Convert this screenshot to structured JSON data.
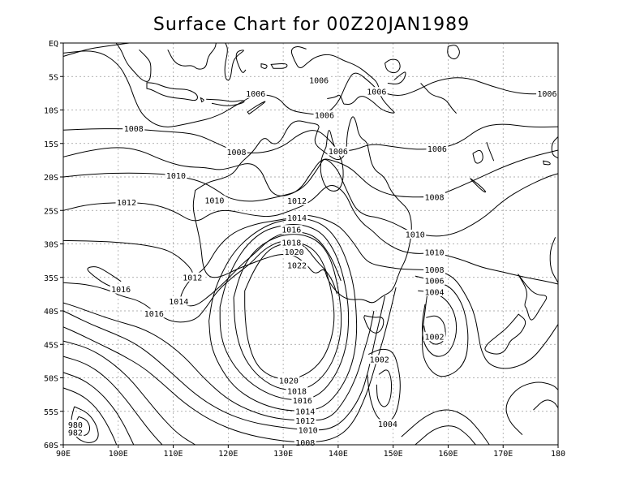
{
  "title": "Surface Chart for   00Z20JAN1989",
  "chart_data": {
    "type": "contour-map",
    "title": "Surface Chart for   00Z20JAN1989",
    "x_ticks": [
      "90E",
      "100E",
      "110E",
      "120E",
      "130E",
      "140E",
      "150E",
      "160E",
      "170E",
      "180"
    ],
    "y_ticks": [
      "EQ",
      "5S",
      "10S",
      "15S",
      "20S",
      "25S",
      "30S",
      "35S",
      "40S",
      "45S",
      "50S",
      "55S",
      "60S"
    ],
    "xlim": [
      90,
      180
    ],
    "ylim": [
      -60,
      0
    ],
    "grid": true,
    "units": "",
    "isobar_labels": [
      {
        "text": "1006",
        "lon": 102.8,
        "lat": -12.8
      },
      {
        "text": "1008",
        "lon": 102.8,
        "lat": -12.8
      },
      {
        "text": "1006",
        "lon": 125.0,
        "lat": -7.6
      },
      {
        "text": "1006",
        "lon": 136.5,
        "lat": -5.6
      },
      {
        "text": "1006",
        "lon": 137.5,
        "lat": -10.8
      },
      {
        "text": "1006",
        "lon": 147.0,
        "lat": -7.3
      },
      {
        "text": "1006",
        "lon": 178.0,
        "lat": -7.6
      },
      {
        "text": "1008",
        "lon": 121.5,
        "lat": -16.3
      },
      {
        "text": "1006",
        "lon": 140.0,
        "lat": -16.2
      },
      {
        "text": "1006",
        "lon": 158.0,
        "lat": -15.8
      },
      {
        "text": "1010",
        "lon": 110.5,
        "lat": -19.8
      },
      {
        "text": "1010",
        "lon": 117.5,
        "lat": -23.5
      },
      {
        "text": "1008",
        "lon": 157.5,
        "lat": -23.0
      },
      {
        "text": "1012",
        "lon": 101.5,
        "lat": -23.8
      },
      {
        "text": "1012",
        "lon": 132.5,
        "lat": -23.6
      },
      {
        "text": "1014",
        "lon": 132.5,
        "lat": -26.1
      },
      {
        "text": "1016",
        "lon": 131.5,
        "lat": -27.9
      },
      {
        "text": "1018",
        "lon": 131.5,
        "lat": -29.8
      },
      {
        "text": "1020",
        "lon": 132.0,
        "lat": -31.2
      },
      {
        "text": "1022",
        "lon": 132.5,
        "lat": -33.2
      },
      {
        "text": "1010",
        "lon": 154.0,
        "lat": -28.6
      },
      {
        "text": "1010",
        "lon": 157.5,
        "lat": -31.3
      },
      {
        "text": "1008",
        "lon": 157.5,
        "lat": -33.9
      },
      {
        "text": "1006",
        "lon": 157.5,
        "lat": -35.5
      },
      {
        "text": "1004",
        "lon": 157.5,
        "lat": -37.2
      },
      {
        "text": "1002",
        "lon": 157.5,
        "lat": -43.9
      },
      {
        "text": "1002",
        "lon": 147.5,
        "lat": -47.3
      },
      {
        "text": "1004",
        "lon": 149.0,
        "lat": -56.9
      },
      {
        "text": "1016",
        "lon": 100.5,
        "lat": -36.8
      },
      {
        "text": "1012",
        "lon": 113.5,
        "lat": -35.0
      },
      {
        "text": "1014",
        "lon": 111.0,
        "lat": -38.6
      },
      {
        "text": "1016",
        "lon": 106.5,
        "lat": -40.4
      },
      {
        "text": "1020",
        "lon": 131.0,
        "lat": -50.4
      },
      {
        "text": "1018",
        "lon": 132.5,
        "lat": -52.0
      },
      {
        "text": "1016",
        "lon": 133.5,
        "lat": -53.4
      },
      {
        "text": "1014",
        "lon": 134.0,
        "lat": -55.0
      },
      {
        "text": "1012",
        "lon": 134.0,
        "lat": -56.4
      },
      {
        "text": "1010",
        "lon": 134.5,
        "lat": -57.8
      },
      {
        "text": "1008",
        "lon": 134.0,
        "lat": -59.7
      },
      {
        "text": "980",
        "lon": 92.2,
        "lat": -57.0
      },
      {
        "text": "982",
        "lon": 92.2,
        "lat": -58.2
      }
    ]
  }
}
